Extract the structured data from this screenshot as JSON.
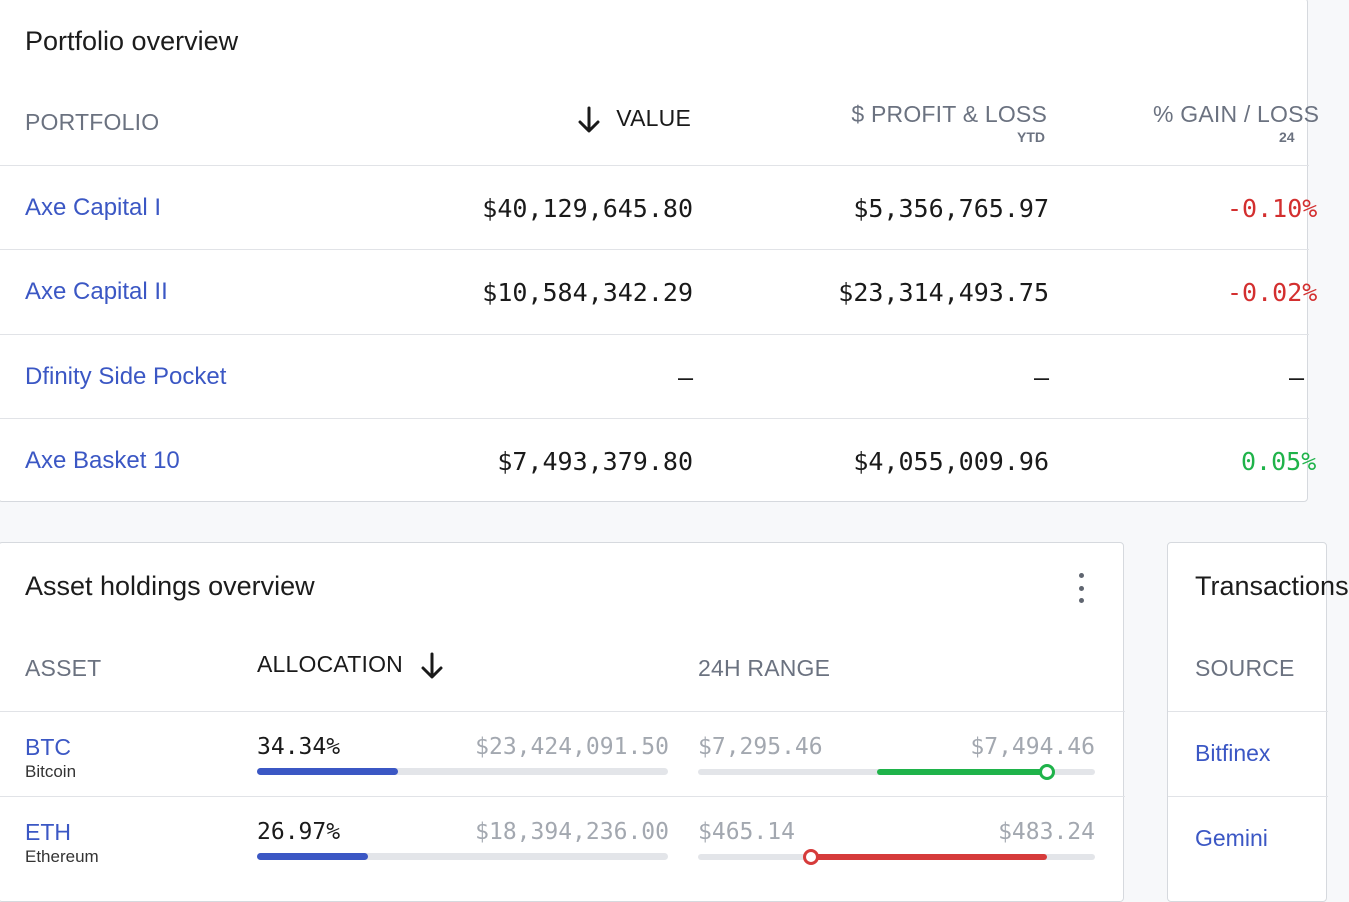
{
  "portfolio": {
    "title": "Portfolio overview",
    "headers": {
      "portfolio": "PORTFOLIO",
      "value": "VALUE",
      "profit_loss": "$ PROFIT & LOSS",
      "profit_loss_sub": "YTD",
      "gain_loss": "% GAIN / LOSS",
      "gain_loss_sub": "24"
    },
    "rows": [
      {
        "name": "Axe Capital I",
        "value": "$40,129,645.80",
        "profit_loss": "$5,356,765.97",
        "gain": "-0.10%"
      },
      {
        "name": "Axe Capital II",
        "value": "$10,584,342.29",
        "profit_loss": "$23,314,493.75",
        "gain": "-0.02%"
      },
      {
        "name": "Dfinity Side Pocket",
        "value": "–",
        "profit_loss": "–",
        "gain": "–"
      },
      {
        "name": "Axe Basket 10",
        "value": "$7,493,379.80",
        "profit_loss": "$4,055,009.96",
        "gain": "0.05%"
      }
    ]
  },
  "assets": {
    "title": "Asset holdings overview",
    "headers": {
      "asset": "ASSET",
      "allocation": "ALLOCATION",
      "range": "24H RANGE"
    },
    "rows": [
      {
        "symbol": "BTC",
        "name": "Bitcoin",
        "allocation": "34.34%",
        "amount": "$23,424,091.50",
        "low": "$7,295.46",
        "high": "$7,494.46",
        "allocation_fraction": 0.3434,
        "range_from": 0.45,
        "range_to": 0.88,
        "direction": "up"
      },
      {
        "symbol": "ETH",
        "name": "Ethereum",
        "allocation": "26.97%",
        "amount": "$18,394,236.00",
        "low": "$465.14",
        "high": "$483.24",
        "allocation_fraction": 0.2697,
        "range_from": 0.285,
        "range_to": 0.88,
        "direction": "down"
      }
    ]
  },
  "transactions": {
    "title": "Transactions",
    "headers": {
      "source": "SOURCE"
    },
    "rows": [
      {
        "source": "Bitfinex"
      },
      {
        "source": "Gemini"
      }
    ]
  },
  "colors": {
    "link": "#3b57c4",
    "negative": "#d32f2f",
    "positive": "#1fb34a",
    "range_up": "#1fb34a",
    "range_down": "#d63b3b"
  },
  "icons": {
    "sort": "arrow-down-icon",
    "menu": "kebab-menu-icon"
  }
}
